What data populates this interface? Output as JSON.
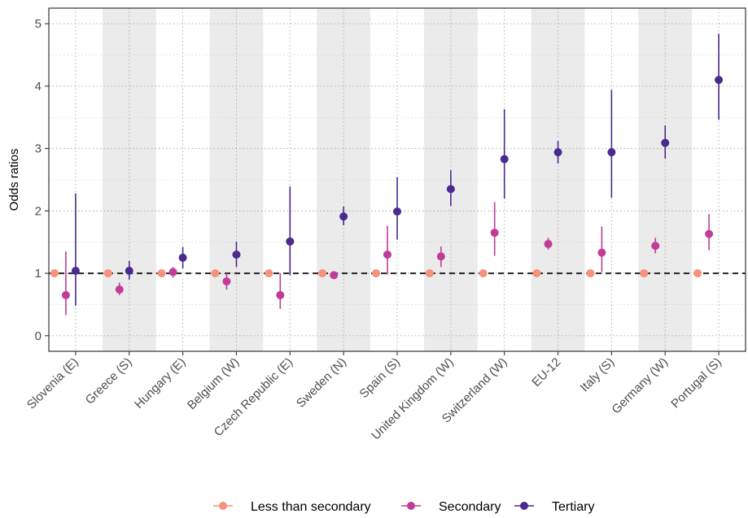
{
  "chart_data": {
    "type": "scatter",
    "title": "",
    "xlabel": "",
    "ylabel": "Odds ratios",
    "ylim": [
      -0.25,
      5.25
    ],
    "yticks": [
      0,
      1,
      2,
      3,
      4,
      5
    ],
    "reference_line": 1,
    "grid": true,
    "shaded_bands": [
      "Greece (S)",
      "Belgium (W)",
      "Sweden (N)",
      "United Kingdom (W)",
      "EU-12",
      "Germany (W)"
    ],
    "legend_position": "bottom",
    "categories": [
      "Slovenia (E)",
      "Greece (S)",
      "Hungary (E)",
      "Belgium (W)",
      "Czech Republic (E)",
      "Sweden (N)",
      "Spain (S)",
      "United Kingdom (W)",
      "Switzerland (W)",
      "EU-12",
      "Italy (S)",
      "Germany (W)",
      "Portugal (S)"
    ],
    "series": [
      {
        "name": "Less than secondary",
        "color": "#F4927A",
        "values": [
          1,
          1,
          1,
          1,
          1,
          1,
          1,
          1,
          1,
          1,
          1,
          1,
          1
        ],
        "lower": [
          1,
          1,
          1,
          1,
          1,
          1,
          1,
          1,
          1,
          1,
          1,
          1,
          1
        ],
        "upper": [
          1,
          1,
          1,
          1,
          1,
          1,
          1,
          1,
          1,
          1,
          1,
          1,
          1
        ]
      },
      {
        "name": "Secondary",
        "color": "#C13C97",
        "values": [
          0.65,
          0.74,
          1.02,
          0.87,
          0.65,
          0.97,
          1.3,
          1.27,
          1.65,
          1.47,
          1.33,
          1.44,
          1.63
        ],
        "lower": [
          0.33,
          0.65,
          0.93,
          0.74,
          0.43,
          0.92,
          0.98,
          1.1,
          1.28,
          1.38,
          1.02,
          1.32,
          1.37
        ],
        "upper": [
          1.35,
          0.85,
          1.1,
          1.0,
          1.0,
          1.03,
          1.76,
          1.43,
          2.14,
          1.57,
          1.75,
          1.57,
          1.95
        ]
      },
      {
        "name": "Tertiary",
        "color": "#4A2A8E",
        "values": [
          1.04,
          1.04,
          1.25,
          1.3,
          1.51,
          1.91,
          1.99,
          2.35,
          2.83,
          2.94,
          2.94,
          3.09,
          4.1
        ],
        "lower": [
          0.48,
          0.9,
          1.08,
          1.1,
          0.97,
          1.77,
          1.54,
          2.08,
          2.2,
          2.76,
          2.21,
          2.84,
          3.46
        ],
        "upper": [
          2.28,
          1.2,
          1.42,
          1.51,
          2.39,
          2.07,
          2.54,
          2.65,
          3.63,
          3.12,
          3.94,
          3.37,
          4.84
        ]
      }
    ]
  }
}
